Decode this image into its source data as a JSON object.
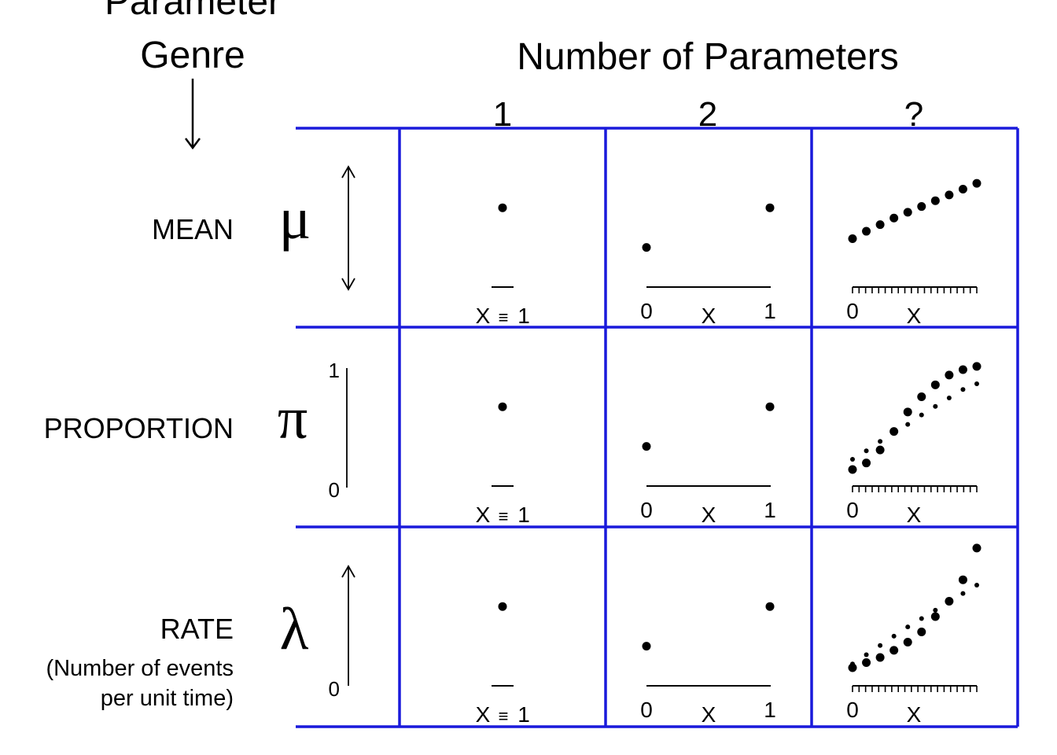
{
  "genre_header": {
    "line1": "Parameter",
    "line2": "Genre",
    "arrow": "down-arrow-icon"
  },
  "columns_header": {
    "title": "Number of Parameters",
    "labels": [
      "1",
      "2",
      "?"
    ]
  },
  "rows": [
    {
      "name": "MEAN",
      "symbol": "μ",
      "range_indicator": "double-arrow",
      "range_low": "",
      "range_high": ""
    },
    {
      "name": "PROPORTION",
      "symbol": "π",
      "range_indicator": "bounded",
      "range_low": "0",
      "range_high": "1"
    },
    {
      "name": "RATE",
      "subtitle_line1": "(Number of events",
      "subtitle_line2": "per unit time)",
      "symbol": "λ",
      "range_indicator": "up-arrow",
      "range_low": "0",
      "range_high": ""
    }
  ],
  "cell_labels": {
    "one_param": {
      "x": "X",
      "equiv": "≡",
      "one": "1"
    },
    "two_param": {
      "left": "0",
      "x": "X",
      "right": "1"
    },
    "many_param": {
      "left": "0",
      "x": "X"
    }
  },
  "chart_data": {
    "type": "scatter",
    "description_values": {
      "one_param": {
        "x": [
          1
        ],
        "y": [
          0.8
        ]
      },
      "two_param": {
        "x": [
          0,
          1
        ],
        "y": [
          0.4,
          0.8
        ]
      },
      "many_param": {
        "mean": {
          "x": [
            0,
            1,
            2,
            3,
            4,
            5,
            6,
            7,
            8,
            9
          ],
          "y": [
            0.3,
            0.39,
            0.47,
            0.55,
            0.62,
            0.69,
            0.76,
            0.83,
            0.9,
            0.97
          ]
        },
        "proportion": {
          "x": [
            0,
            1,
            2,
            3,
            4,
            5,
            6,
            7,
            8,
            9
          ],
          "y": [
            0.08,
            0.14,
            0.26,
            0.43,
            0.61,
            0.75,
            0.86,
            0.95,
            1.0,
            1.03
          ]
        },
        "proportion_linear": {
          "x": [
            0,
            1,
            2,
            3,
            4,
            5,
            6,
            7,
            8,
            9
          ],
          "y": [
            0.2,
            0.29,
            0.39,
            0.48,
            0.57,
            0.67,
            0.76,
            0.85,
            0.94,
            1.0
          ]
        },
        "rate": {
          "x": [
            0,
            1,
            2,
            3,
            4,
            5,
            6,
            7,
            8,
            9
          ],
          "y": [
            0.1,
            0.15,
            0.2,
            0.27,
            0.35,
            0.45,
            0.6,
            0.75,
            0.96,
            1.27
          ]
        },
        "rate_linear": {
          "x": [
            0,
            1,
            2,
            3,
            4,
            5,
            6,
            7,
            8,
            9
          ],
          "y": [
            0.15,
            0.25,
            0.35,
            0.45,
            0.55,
            0.64,
            0.73,
            0.82,
            0.91,
            1.0
          ]
        }
      }
    }
  },
  "colors": {
    "grid": "#1a1adb",
    "ink": "#000000"
  }
}
